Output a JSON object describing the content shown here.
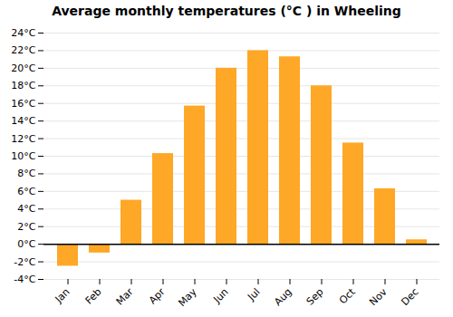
{
  "chart_data": {
    "type": "bar",
    "title": "Average monthly temperatures (°C ) in Wheeling",
    "categories": [
      "Jan",
      "Feb",
      "Mar",
      "Apr",
      "May",
      "Jun",
      "Jul",
      "Aug",
      "Sep",
      "Oct",
      "Nov",
      "Dec"
    ],
    "values": [
      -2.5,
      -1.0,
      5.0,
      10.3,
      15.7,
      20.0,
      22.0,
      21.3,
      18.0,
      11.5,
      6.3,
      0.5
    ],
    "color": "#FFA726",
    "ylim": [
      -4,
      24
    ],
    "yticks": [
      {
        "value": -4,
        "label": "-4°C"
      },
      {
        "value": -2,
        "label": "-2°C"
      },
      {
        "value": 0,
        "label": "0°C"
      },
      {
        "value": 2,
        "label": "2°C"
      },
      {
        "value": 4,
        "label": "4°C"
      },
      {
        "value": 6,
        "label": "6°C"
      },
      {
        "value": 8,
        "label": "8°C"
      },
      {
        "value": 10,
        "label": "10°C"
      },
      {
        "value": 12,
        "label": "12°C"
      },
      {
        "value": 14,
        "label": "14°C"
      },
      {
        "value": 16,
        "label": "16°C"
      },
      {
        "value": 18,
        "label": "18°C"
      },
      {
        "value": 20,
        "label": "20°C"
      },
      {
        "value": 22,
        "label": "22°C"
      },
      {
        "value": 24,
        "label": "24°C"
      }
    ],
    "grid": true
  }
}
